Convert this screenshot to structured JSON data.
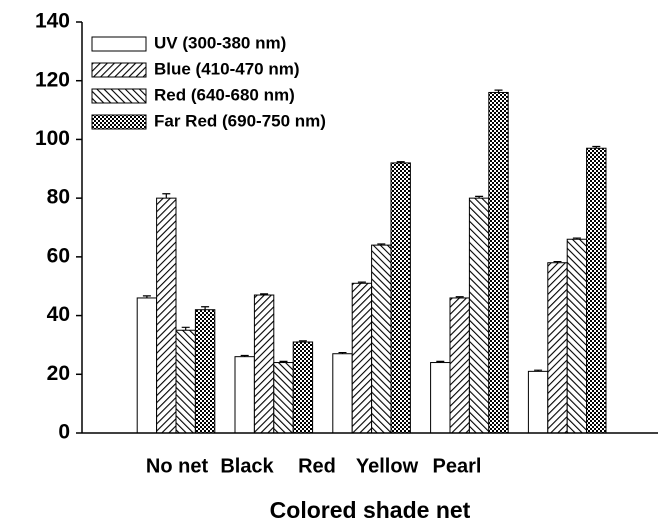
{
  "chart_data": {
    "type": "bar",
    "x_label": "Colored shade net",
    "categories": [
      "No net",
      "Black",
      "Red",
      "Yellow",
      "Pearl"
    ],
    "series": [
      {
        "name": "UV (300-380 nm)",
        "color": "#ffffff",
        "pattern": "none",
        "values": [
          46,
          26,
          27,
          24,
          21
        ],
        "errors": [
          0.7,
          0.4,
          0.4,
          0.4,
          0.4
        ]
      },
      {
        "name": "Blue (410-470 nm)",
        "color": "#ffffff",
        "pattern": "forward-hatch",
        "values": [
          80,
          47,
          51,
          46,
          58
        ],
        "errors": [
          1.5,
          0.4,
          0.4,
          0.4,
          0.4
        ]
      },
      {
        "name": "Red (640-680 nm)",
        "color": "#ffffff",
        "pattern": "back-hatch",
        "values": [
          35,
          24,
          64,
          80,
          66
        ],
        "errors": [
          1,
          0.4,
          0.4,
          0.6,
          0.4
        ]
      },
      {
        "name": "Far Red (690-750 nm)",
        "color": "#ffffff",
        "pattern": "cross-hatch",
        "values": [
          42,
          31,
          92,
          116,
          97
        ],
        "errors": [
          1,
          0.4,
          0.4,
          0.8,
          0.6
        ]
      }
    ],
    "ylim": [
      0,
      140
    ],
    "yticks": [
      0,
      20,
      40,
      60,
      80,
      100,
      120,
      140
    ],
    "grid": false,
    "legend": "upper left"
  }
}
